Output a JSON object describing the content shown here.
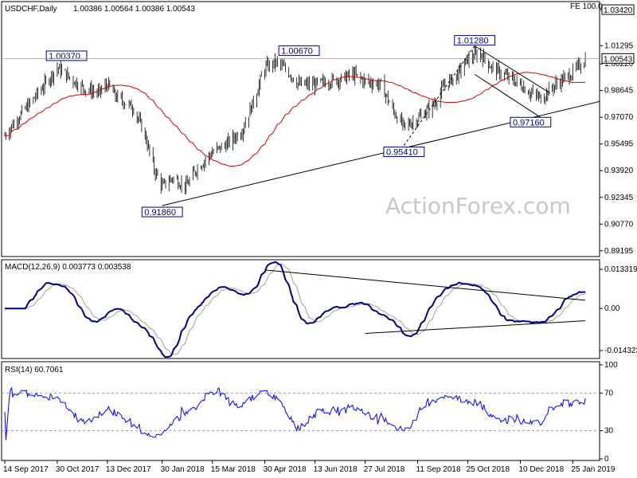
{
  "chart_data": [
    {
      "panel": "price",
      "type": "candlestick",
      "title": "USDCHF,Daily",
      "ohlc": "1.00386 1.00564 1.00386 1.00543",
      "last_price": "1.00543",
      "fe_label": "FE 100.0",
      "ylim": [
        0.8895,
        1.038
      ],
      "y_ticks": [
        "1.03420",
        "1.01295",
        "1.00220",
        "0.98645",
        "0.97070",
        "0.95495",
        "0.93920",
        "0.92345",
        "0.90770",
        "0.89195"
      ],
      "y_tick_values": [
        1.0342,
        1.01295,
        1.0022,
        0.98645,
        0.9707,
        0.95495,
        0.9392,
        0.92345,
        0.9077,
        0.89195
      ],
      "annotations": [
        {
          "text": "1.00370",
          "x": "19 Oct 2017",
          "y": 1.0037
        },
        {
          "text": "0.91860",
          "x": "30 Jan 2018",
          "y": 0.9186
        },
        {
          "text": "1.00670",
          "x": "30 May 2018",
          "y": 1.0067
        },
        {
          "text": "0.95410",
          "x": "30 Aug 2018",
          "y": 0.9541
        },
        {
          "text": "1.01280",
          "x": "31 Oct 2018",
          "y": 1.0128
        },
        {
          "text": "0.97160",
          "x": "19 Dec 2018",
          "y": 0.9716
        }
      ],
      "close_path": [
        [
          "14 Sep 2017",
          0.96
        ],
        [
          "25 Sep 2017",
          0.97
        ],
        [
          "5 Oct 2017",
          0.978
        ],
        [
          "19 Oct 2017",
          0.99
        ],
        [
          "30 Oct 2017",
          1.0
        ],
        [
          "10 Nov 2017",
          0.994
        ],
        [
          "22 Nov 2017",
          0.988
        ],
        [
          "5 Dec 2017",
          0.985
        ],
        [
          "13 Dec 2017",
          0.99
        ],
        [
          "20 Dec 2017",
          0.983
        ],
        [
          "5 Jan 2018",
          0.976
        ],
        [
          "15 Jan 2018",
          0.96
        ],
        [
          "23 Jan 2018",
          0.94
        ],
        [
          "30 Jan 2018",
          0.93
        ],
        [
          "8 Feb 2018",
          0.935
        ],
        [
          "20 Feb 2018",
          0.93
        ],
        [
          "1 Mar 2018",
          0.94
        ],
        [
          "15 Mar 2018",
          0.95
        ],
        [
          "28 Mar 2018",
          0.955
        ],
        [
          "10 Apr 2018",
          0.963
        ],
        [
          "20 Apr 2018",
          0.98
        ],
        [
          "30 Apr 2018",
          1.0
        ],
        [
          "10 May 2018",
          1.003
        ],
        [
          "20 May 2018",
          0.998
        ],
        [
          "30 May 2018",
          0.99
        ],
        [
          "13 Jun 2018",
          0.99
        ],
        [
          "25 Jun 2018",
          0.992
        ],
        [
          "5 Jul 2018",
          0.993
        ],
        [
          "16 Jul 2018",
          0.996
        ],
        [
          "27 Jul 2018",
          0.992
        ],
        [
          "10 Aug 2018",
          0.99
        ],
        [
          "20 Aug 2018",
          0.975
        ],
        [
          "30 Aug 2018",
          0.965
        ],
        [
          "11 Sep 2018",
          0.97
        ],
        [
          "25 Sep 2018",
          0.978
        ],
        [
          "5 Oct 2018",
          0.99
        ],
        [
          "15 Oct 2018",
          0.995
        ],
        [
          "25 Oct 2018",
          1.005
        ],
        [
          "5 Nov 2018",
          1.008
        ],
        [
          "15 Nov 2018",
          1.0
        ],
        [
          "25 Nov 2018",
          0.996
        ],
        [
          "5 Dec 2018",
          0.992
        ],
        [
          "10 Dec 2018",
          0.99
        ],
        [
          "19 Dec 2018",
          0.985
        ],
        [
          "28 Dec 2018",
          0.982
        ],
        [
          "10 Jan 2019",
          0.99
        ],
        [
          "25 Jan 2019",
          0.997
        ],
        [
          "5 Feb 2019",
          1.005
        ]
      ]
    },
    {
      "panel": "macd",
      "type": "line",
      "title": "MACD(12,26,9) 0.003773 0.003538",
      "y_ticks": [
        "0.013319",
        "0.00",
        "-0.014323"
      ]
    },
    {
      "panel": "rsi",
      "type": "line",
      "title": "RSI(14) 60.7061",
      "y_ticks": [
        "100",
        "70",
        "30",
        "0"
      ]
    }
  ],
  "x_ticks": [
    "14 Sep 2017",
    "30 Oct 2017",
    "13 Dec 2017",
    "30 Jan 2018",
    "15 Mar 2018",
    "30 Apr 2018",
    "13 Jun 2018",
    "27 Jul 2018",
    "11 Sep 2018",
    "25 Oct 2018",
    "10 Dec 2018",
    "25 Jan 2019"
  ],
  "watermark": "ActionForex.com",
  "colors": {
    "candle": "#000000",
    "ma": "#d00000",
    "macd": "#000080",
    "signal": "#a0a0a0",
    "rsi": "#0000ff",
    "label_border": "#000080",
    "grid": "#000000"
  }
}
